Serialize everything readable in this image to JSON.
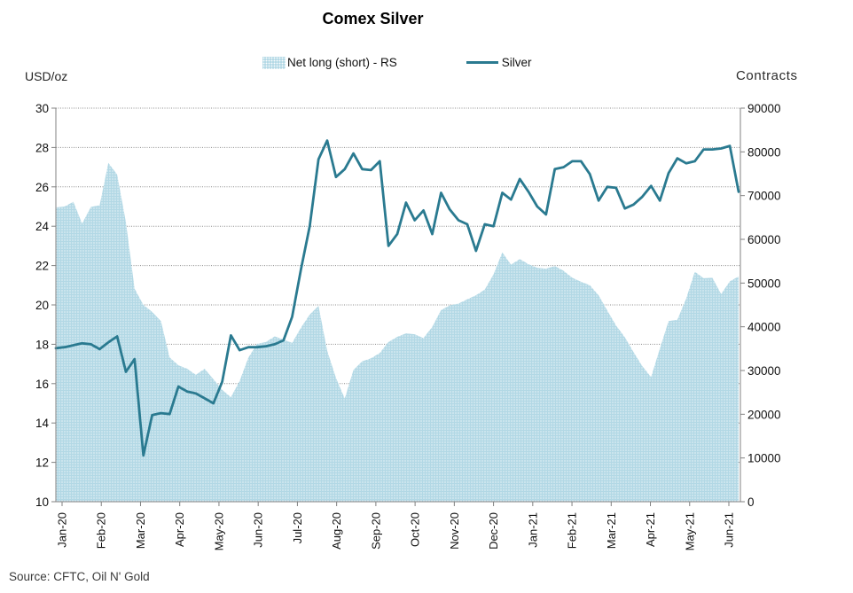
{
  "title": "Comex Silver",
  "legend": [
    {
      "label": "Net long (short) - RS",
      "swatch": "area-swatch"
    },
    {
      "label": "Silver",
      "swatch": "line-swatch"
    }
  ],
  "left_axis_unit": "USD/oz",
  "right_axis_unit": "Contracts",
  "source": "Source: CFTC, Oil N' Gold",
  "colors": {
    "line": "#2a7a90",
    "area_base": "#b2d8e5",
    "area_dot": "#ffffff",
    "grid": "#8f8f8f",
    "axis": "#808080",
    "tick_text": "#111111"
  },
  "chart_data": {
    "type": "combo",
    "frequency": "weekly",
    "x_tick_labels": [
      "Jan-20",
      "Feb-20",
      "Mar-20",
      "Apr-20",
      "May-20",
      "Jun-20",
      "Jul-20",
      "Aug-20",
      "Sep-20",
      "Oct-20",
      "Nov-20",
      "Dec-20",
      "Jan-21",
      "Feb-21",
      "Mar-21",
      "Apr-21",
      "May-21",
      "Jun-21"
    ],
    "left_axis": {
      "label": "USD/oz",
      "min": 10,
      "max": 30,
      "step": 2
    },
    "right_axis": {
      "label": "Contracts",
      "min": 0,
      "max": 90000,
      "step": 10000
    },
    "grid": true,
    "legend_position": "top",
    "series": [
      {
        "name": "Net long (short) - RS",
        "type": "area",
        "axis": "right",
        "values": [
          67300,
          67500,
          68600,
          63600,
          67400,
          67800,
          77500,
          74800,
          63900,
          48700,
          45000,
          43400,
          41300,
          33000,
          31200,
          30400,
          29000,
          30400,
          28000,
          25600,
          23900,
          27600,
          33000,
          36100,
          36500,
          37800,
          37100,
          36300,
          39800,
          42800,
          44800,
          34500,
          28300,
          23600,
          30100,
          32100,
          32800,
          34000,
          36500,
          37700,
          38500,
          38300,
          37400,
          40000,
          43800,
          44900,
          45300,
          46300,
          47200,
          48500,
          52000,
          57000,
          54200,
          55500,
          54300,
          53500,
          53300,
          53900,
          52800,
          51200,
          50300,
          49500,
          47200,
          43700,
          40300,
          37600,
          34200,
          31000,
          28500,
          35000,
          41300,
          41600,
          46400,
          52600,
          51100,
          51200,
          47500,
          50400,
          51500
        ]
      },
      {
        "name": "Silver",
        "type": "line",
        "axis": "left",
        "values": [
          17.8,
          17.85,
          17.95,
          18.05,
          18.0,
          17.75,
          18.1,
          18.4,
          16.6,
          17.25,
          12.35,
          14.4,
          14.5,
          14.45,
          15.85,
          15.6,
          15.5,
          15.25,
          15.0,
          16.1,
          18.45,
          17.7,
          17.85,
          17.85,
          17.9,
          18.0,
          18.2,
          19.4,
          21.8,
          24.0,
          27.4,
          28.35,
          26.5,
          26.9,
          27.7,
          26.9,
          26.85,
          27.3,
          23.0,
          23.6,
          25.2,
          24.3,
          24.8,
          23.6,
          25.7,
          24.85,
          24.3,
          24.1,
          22.75,
          24.1,
          24.0,
          25.7,
          25.35,
          26.4,
          25.75,
          25.0,
          24.6,
          26.9,
          27.0,
          27.3,
          27.3,
          26.65,
          25.3,
          26.0,
          25.95,
          24.9,
          25.1,
          25.5,
          26.05,
          25.3,
          26.7,
          27.45,
          27.2,
          27.3,
          27.9,
          27.9,
          27.95,
          28.08,
          25.75
        ]
      }
    ]
  }
}
